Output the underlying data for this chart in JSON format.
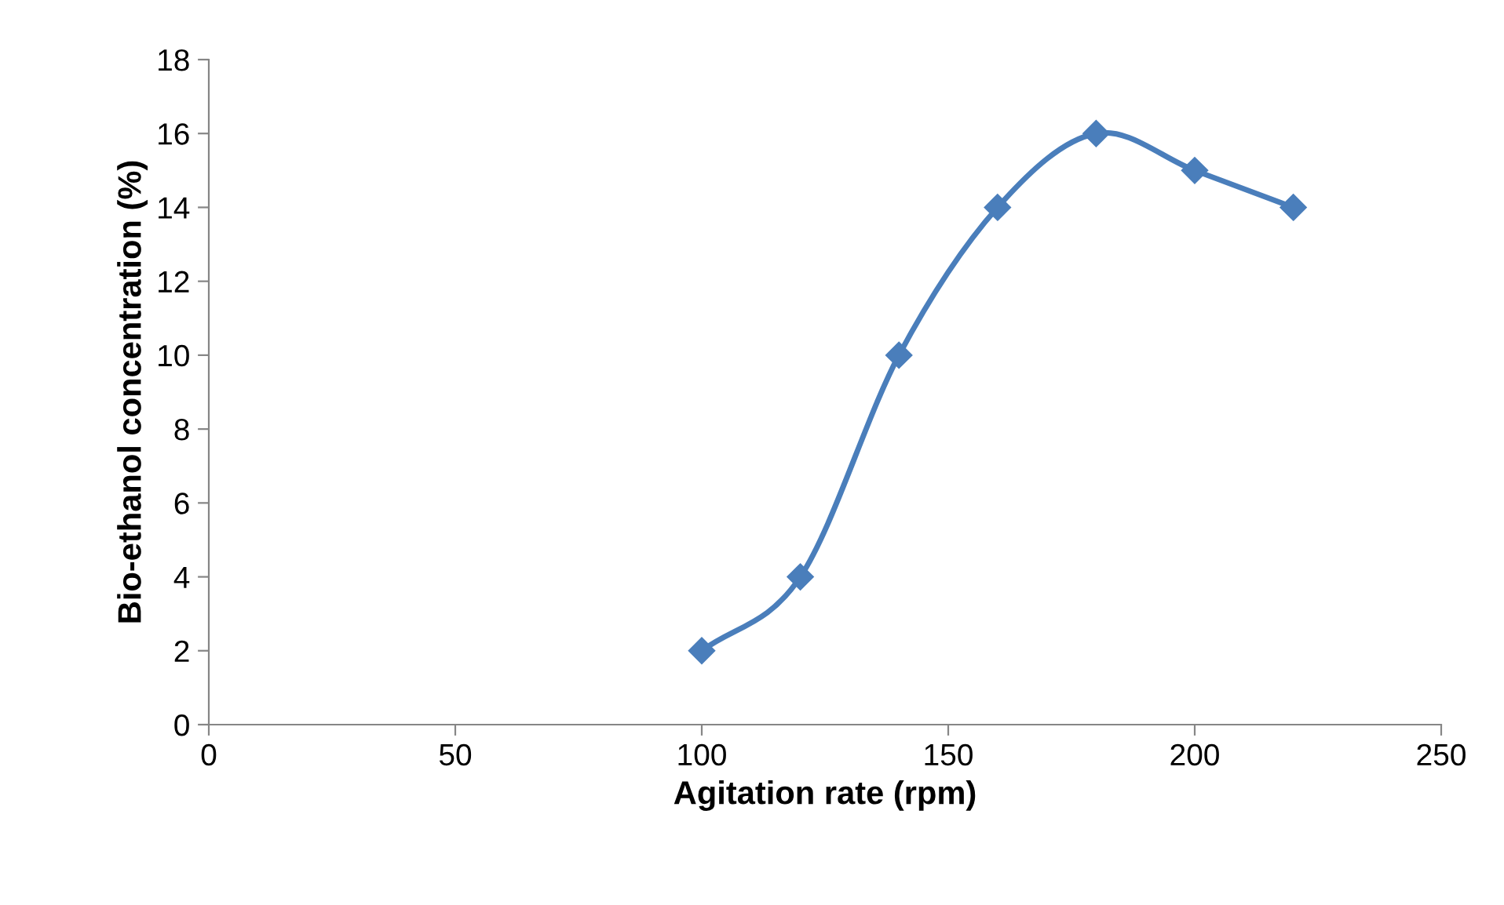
{
  "chart_data": {
    "type": "line",
    "xlabel": "Agitation rate (rpm)",
    "ylabel": "Bio-ethanol concentration (%)",
    "series": [
      {
        "color": "#4a7ebb",
        "x": [
          100,
          120,
          140,
          160,
          180,
          200,
          220
        ],
        "values": [
          2,
          4,
          10,
          14,
          16,
          15,
          14
        ]
      }
    ],
    "xlim": [
      0,
      250
    ],
    "xticks": [
      0,
      50,
      100,
      150,
      200,
      250
    ],
    "ylim": [
      0,
      18
    ],
    "yticks": [
      0,
      2,
      4,
      6,
      8,
      10,
      12,
      14,
      16,
      18
    ],
    "grid": false,
    "legend": false,
    "marker": "diamond",
    "line_style": "solid"
  }
}
